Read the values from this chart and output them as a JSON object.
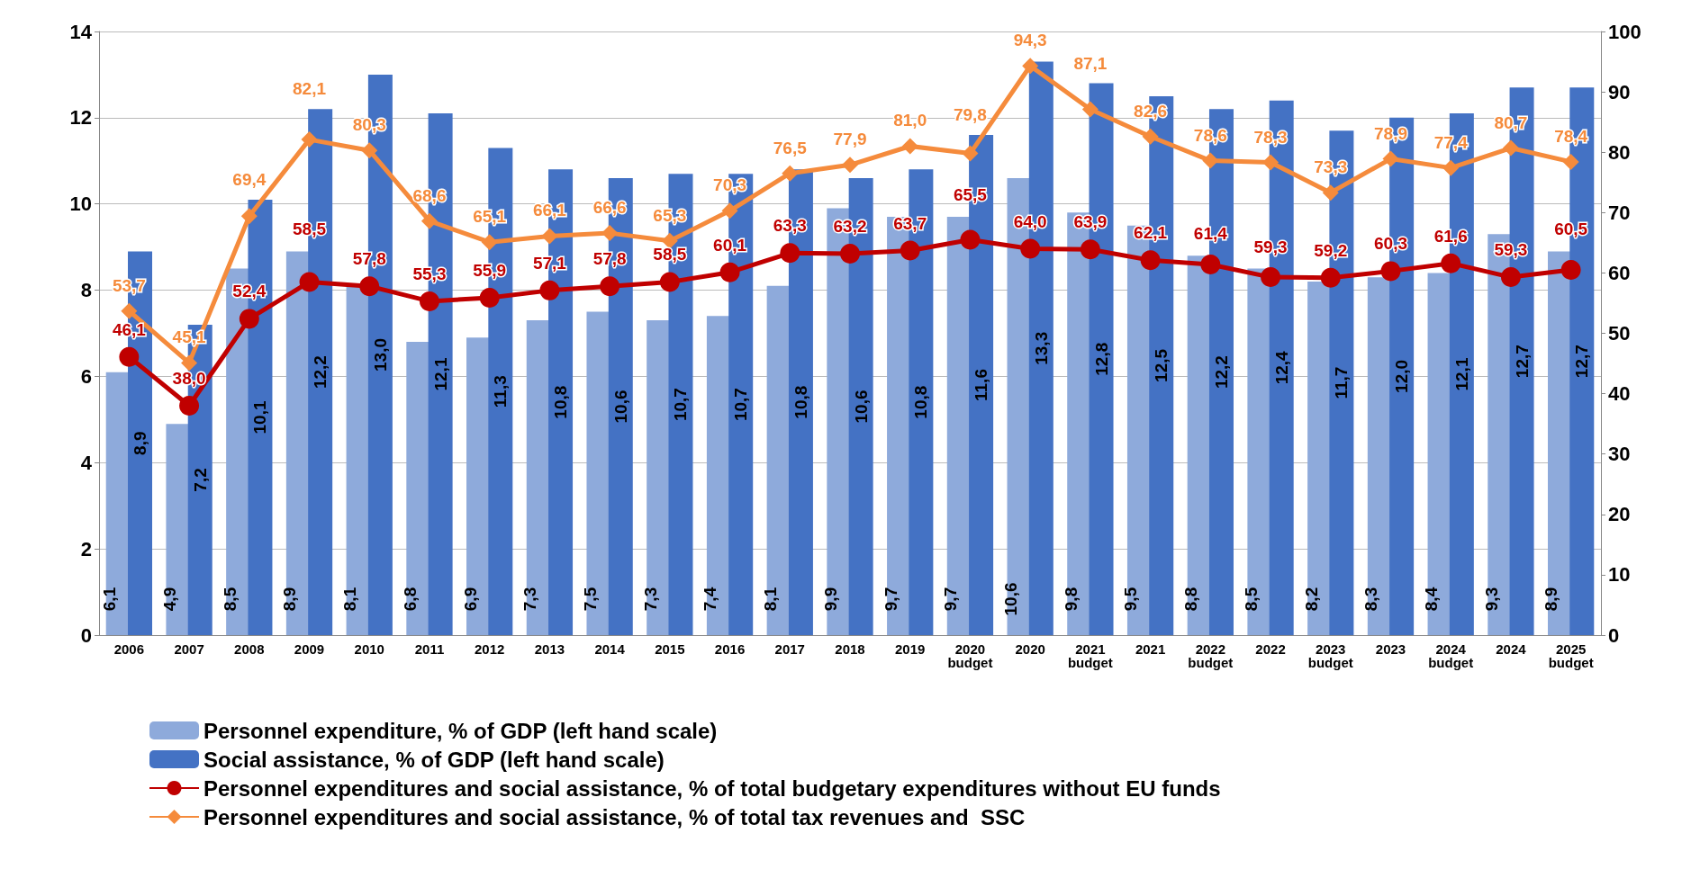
{
  "chart_data": {
    "type": "bar",
    "categories": [
      "2006",
      "2007",
      "2008",
      "2009",
      "2010",
      "2011",
      "2012",
      "2013",
      "2014",
      "2015",
      "2016",
      "2017",
      "2018",
      "2019",
      "2020\nbudget",
      "2020",
      "2021\nbudget",
      "2021",
      "2022\nbudget",
      "2022",
      "2023\nbudget",
      "2023",
      "2024\nbudget",
      "2024",
      "2025\nbudget"
    ],
    "series": [
      {
        "name": "Personnel expenditure, % of GDP (left hand scale)",
        "color": "#8eaadb",
        "values": [
          6.1,
          4.9,
          8.5,
          8.9,
          8.1,
          6.8,
          6.9,
          7.3,
          7.5,
          7.3,
          7.4,
          8.1,
          9.9,
          9.7,
          9.7,
          10.6,
          9.8,
          9.5,
          8.8,
          8.5,
          8.2,
          8.3,
          8.4,
          9.3,
          8.9
        ],
        "value_labels": [
          "6,1",
          "4,9",
          "8,5",
          "8,9",
          "8,1",
          "6,8",
          "6,9",
          "7,3",
          "7,5",
          "7,3",
          "7,4",
          "8,1",
          "9,9",
          "9,7",
          "9,7",
          "10,6",
          "9,8",
          "9,5",
          "8,8",
          "8,5",
          "8,2",
          "8,3",
          "8,4",
          "9,3",
          "8,9"
        ]
      },
      {
        "name": "Social assistance, % of GDP (left hand scale)",
        "color": "#4472c4",
        "values": [
          8.9,
          7.2,
          10.1,
          12.2,
          13.0,
          12.1,
          11.3,
          10.8,
          10.6,
          10.7,
          10.7,
          10.8,
          10.6,
          10.8,
          11.6,
          13.3,
          12.8,
          12.5,
          12.2,
          12.4,
          11.7,
          12.0,
          12.1,
          12.7,
          12.7
        ],
        "value_labels": [
          "8,9",
          "7,2",
          "10,1",
          "12,2",
          "13,0",
          "12,1",
          "11,3",
          "10,8",
          "10,6",
          "10,7",
          "10,7",
          "10,8",
          "10,6",
          "10,8",
          "11,6",
          "13,3",
          "12,8",
          "12,5",
          "12,2",
          "12,4",
          "11,7",
          "12,0",
          "12,1",
          "12,7",
          "12,7"
        ]
      },
      {
        "name": "Personnel expenditures and social assistance, % of total budgetary expenditures without EU funds",
        "type": "line",
        "axis": "y2",
        "marker": "circle",
        "color": "#c00000",
        "values": [
          46.1,
          38.0,
          52.4,
          58.5,
          57.8,
          55.3,
          55.9,
          57.1,
          57.8,
          58.5,
          60.1,
          63.3,
          63.2,
          63.7,
          65.5,
          64.0,
          63.9,
          62.1,
          61.4,
          59.3,
          59.2,
          60.3,
          61.6,
          59.3,
          60.5
        ],
        "value_labels": [
          "46,1",
          "38,0",
          "52,4",
          "58,5",
          "57,8",
          "55,3",
          "55,9",
          "57,1",
          "57,8",
          "58,5",
          "60,1",
          "63,3",
          "63,2",
          "63,7",
          "65,5",
          "64,0",
          "63,9",
          "62,1",
          "61,4",
          "59,3",
          "59,2",
          "60,3",
          "61,6",
          "59,3",
          "60,5"
        ]
      },
      {
        "name": "Personnel expenditures and social assistance, % of total tax revenues and  SSC",
        "type": "line",
        "axis": "y2",
        "marker": "diamond",
        "color": "#f58b3c",
        "values": [
          53.7,
          45.1,
          69.4,
          82.1,
          80.3,
          68.6,
          65.1,
          66.1,
          66.6,
          65.3,
          70.3,
          76.5,
          77.9,
          81.0,
          79.8,
          94.3,
          87.1,
          82.6,
          78.6,
          78.3,
          73.3,
          78.9,
          77.4,
          80.7,
          78.4
        ],
        "value_labels": [
          "53,7",
          "45,1",
          "69,4",
          "82,1",
          "80,3",
          "68,6",
          "65,1",
          "66,1",
          "66,6",
          "65,3",
          "70,3",
          "76,5",
          "77,9",
          "81,0",
          "79,8",
          "94,3",
          "87,1",
          "82,6",
          "78,6",
          "78,3",
          "73,3",
          "78,9",
          "77,4",
          "80,7",
          "78,4"
        ]
      }
    ],
    "ylim": [
      0,
      14
    ],
    "yticks": [
      0,
      2,
      4,
      6,
      8,
      10,
      12,
      14
    ],
    "y2lim": [
      0,
      100
    ],
    "y2ticks": [
      0,
      10,
      20,
      30,
      40,
      50,
      60,
      70,
      80,
      90,
      100
    ],
    "grid": "y",
    "legend": "bottom"
  }
}
